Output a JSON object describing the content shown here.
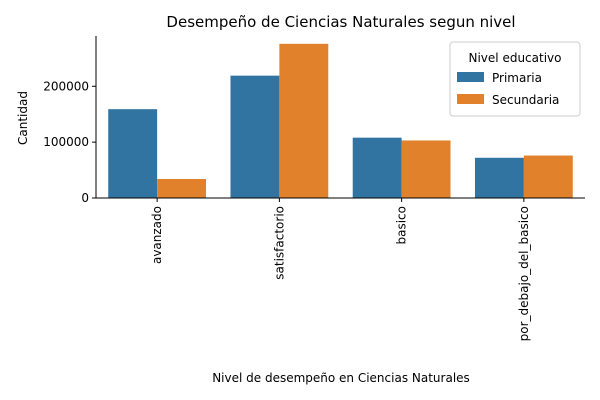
{
  "chart_data": {
    "type": "bar",
    "title": "Desempeño de Ciencias Naturales segun nivel",
    "xlabel": "Nivel de desempeño en Ciencias Naturales",
    "ylabel": "Cantidad",
    "categories": [
      "avanzado",
      "satisfactorio",
      "basico",
      "por_debajo_del_basico"
    ],
    "series": [
      {
        "name": "Primaria",
        "color": "#3274a1",
        "values": [
          159000,
          219000,
          108000,
          72000
        ]
      },
      {
        "name": "Secundaria",
        "color": "#e1812c",
        "values": [
          34000,
          276000,
          103000,
          76000
        ]
      }
    ],
    "ylim": [
      0,
      290000
    ],
    "yticks": [
      0,
      100000,
      200000
    ],
    "ytick_labels": [
      "0",
      "100000",
      "200000"
    ],
    "legend": {
      "title": "Nivel educativo",
      "placement": "top-right"
    },
    "grid": false
  }
}
